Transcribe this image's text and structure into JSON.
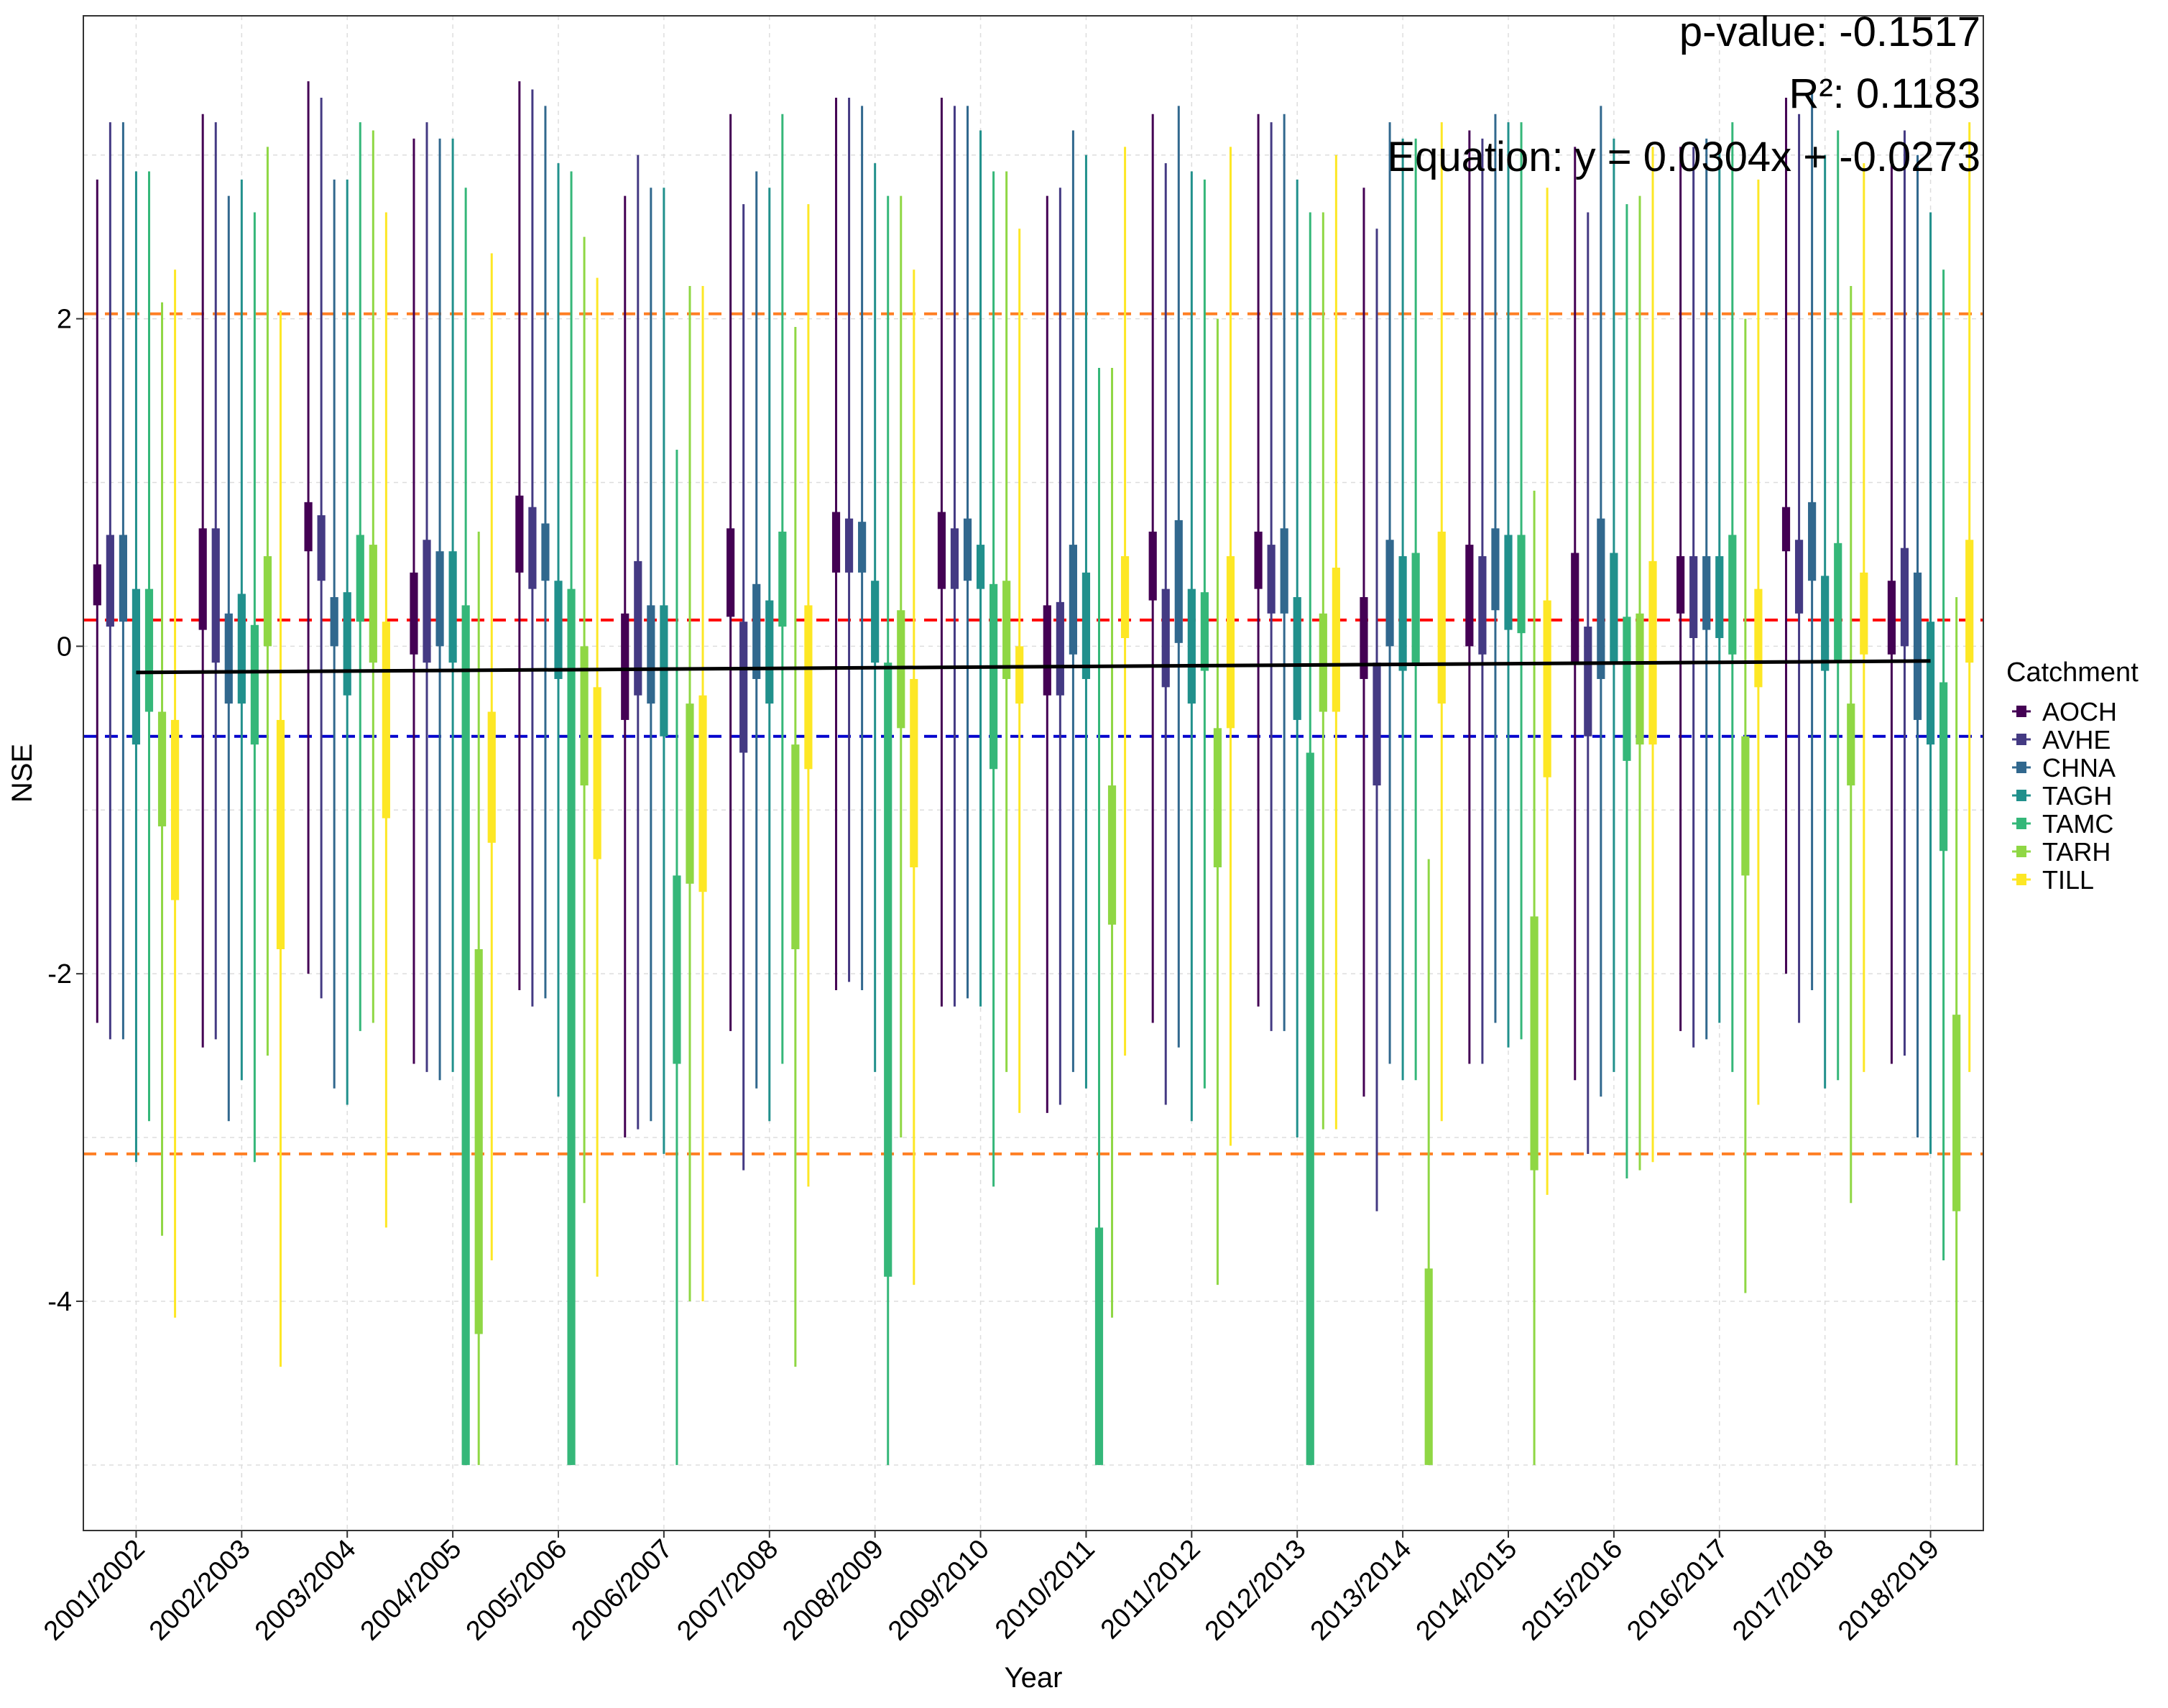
{
  "chart_data": {
    "type": "boxplot",
    "xlabel": "Year",
    "ylabel": "NSE",
    "ylim": [
      -5.4,
      3.85
    ],
    "yticks": [
      -4,
      -2,
      0,
      2
    ],
    "ytick_labels": [
      "-4",
      "-2",
      "0",
      "2"
    ],
    "categories": [
      "2001/2002",
      "2002/2003",
      "2003/2004",
      "2004/2005",
      "2005/2006",
      "2006/2007",
      "2007/2008",
      "2008/2009",
      "2009/2010",
      "2010/2011",
      "2011/2012",
      "2012/2013",
      "2013/2014",
      "2014/2015",
      "2015/2016",
      "2016/2017",
      "2017/2018",
      "2018/2019"
    ],
    "legend": {
      "title": "Catchment",
      "entries": [
        "AOCH",
        "AVHE",
        "CHNA",
        "TAGH",
        "TAMC",
        "TARH",
        "TILL"
      ],
      "placement": "right"
    },
    "series_colors": {
      "AOCH": "#440154",
      "AVHE": "#443A83",
      "CHNA": "#31688E",
      "TAGH": "#21908C",
      "TAMC": "#35B779",
      "TARH": "#8FD744",
      "TILL": "#FDE725"
    },
    "boxes": {
      "AOCH": [
        [
          0.25,
          0.5,
          -2.3,
          2.85
        ],
        [
          0.1,
          0.72,
          -2.45,
          3.25
        ],
        [
          0.58,
          0.88,
          -2.0,
          3.45
        ],
        [
          -0.05,
          0.45,
          -2.55,
          3.1
        ],
        [
          0.45,
          0.92,
          -2.1,
          3.45
        ],
        [
          -0.45,
          0.2,
          -3.0,
          2.75
        ],
        [
          0.18,
          0.72,
          -2.35,
          3.25
        ],
        [
          0.45,
          0.82,
          -2.1,
          3.35
        ],
        [
          0.35,
          0.82,
          -2.2,
          3.35
        ],
        [
          -0.3,
          0.25,
          -2.85,
          2.75
        ],
        [
          0.28,
          0.7,
          -2.3,
          3.25
        ],
        [
          0.35,
          0.7,
          -2.2,
          3.25
        ],
        [
          -0.2,
          0.3,
          -2.75,
          2.8
        ],
        [
          0.0,
          0.62,
          -2.55,
          3.15
        ],
        [
          -0.1,
          0.57,
          -2.65,
          3.05
        ],
        [
          0.2,
          0.55,
          -2.35,
          3.05
        ],
        [
          0.58,
          0.85,
          -2.0,
          3.35
        ],
        [
          -0.05,
          0.4,
          -2.55,
          2.95
        ]
      ],
      "AVHE": [
        [
          0.12,
          0.68,
          -2.4,
          3.2
        ],
        [
          -0.1,
          0.72,
          -2.4,
          3.2
        ],
        [
          0.4,
          0.8,
          -2.15,
          3.35
        ],
        [
          -0.1,
          0.65,
          -2.6,
          3.2
        ],
        [
          0.35,
          0.85,
          -2.2,
          3.4
        ],
        [
          -0.3,
          0.52,
          -2.95,
          3.0
        ],
        [
          -0.65,
          0.15,
          -3.2,
          2.7
        ],
        [
          0.45,
          0.78,
          -2.05,
          3.35
        ],
        [
          0.35,
          0.72,
          -2.2,
          3.3
        ],
        [
          -0.3,
          0.27,
          -2.8,
          2.8
        ],
        [
          -0.25,
          0.35,
          -2.8,
          2.95
        ],
        [
          0.2,
          0.62,
          -2.35,
          3.2
        ],
        [
          -0.85,
          -0.1,
          -3.45,
          2.55
        ],
        [
          -0.05,
          0.55,
          -2.55,
          3.1
        ],
        [
          -0.55,
          0.12,
          -3.1,
          2.65
        ],
        [
          0.05,
          0.55,
          -2.45,
          3.05
        ],
        [
          0.2,
          0.65,
          -2.3,
          3.25
        ],
        [
          0.0,
          0.6,
          -2.5,
          3.15
        ]
      ],
      "CHNA": [
        [
          0.15,
          0.68,
          -2.4,
          3.2
        ],
        [
          -0.35,
          0.2,
          -2.9,
          2.75
        ],
        [
          0.0,
          0.3,
          -2.7,
          2.85
        ],
        [
          0.0,
          0.58,
          -2.65,
          3.1
        ],
        [
          0.4,
          0.75,
          -2.15,
          3.3
        ],
        [
          -0.35,
          0.25,
          -2.9,
          2.8
        ],
        [
          -0.2,
          0.38,
          -2.7,
          2.9
        ],
        [
          0.45,
          0.76,
          -2.1,
          3.3
        ],
        [
          0.4,
          0.78,
          -2.15,
          3.3
        ],
        [
          -0.05,
          0.62,
          -2.6,
          3.15
        ],
        [
          0.02,
          0.77,
          -2.45,
          3.3
        ],
        [
          0.2,
          0.72,
          -2.35,
          3.25
        ],
        [
          0.0,
          0.65,
          -2.55,
          3.2
        ],
        [
          0.22,
          0.72,
          -2.3,
          3.25
        ],
        [
          -0.2,
          0.78,
          -2.75,
          3.3
        ],
        [
          0.1,
          0.55,
          -2.4,
          3.1
        ],
        [
          0.4,
          0.88,
          -2.1,
          3.4
        ],
        [
          -0.45,
          0.45,
          -3.0,
          3.0
        ]
      ],
      "TAGH": [
        [
          -0.6,
          0.35,
          -3.15,
          2.9
        ],
        [
          -0.35,
          0.32,
          -2.65,
          2.85
        ],
        [
          -0.3,
          0.33,
          -2.8,
          2.85
        ],
        [
          -0.1,
          0.58,
          -2.6,
          3.1
        ],
        [
          -0.2,
          0.4,
          -2.75,
          2.95
        ],
        [
          -0.55,
          0.25,
          -3.1,
          2.8
        ],
        [
          -0.35,
          0.28,
          -2.9,
          2.8
        ],
        [
          -0.1,
          0.4,
          -2.6,
          2.95
        ],
        [
          0.35,
          0.62,
          -2.2,
          3.15
        ],
        [
          -0.2,
          0.45,
          -2.7,
          3.0
        ],
        [
          -0.35,
          0.35,
          -2.9,
          2.9
        ],
        [
          -0.45,
          0.3,
          -3.0,
          2.85
        ],
        [
          -0.15,
          0.55,
          -2.65,
          3.1
        ],
        [
          0.1,
          0.68,
          -2.45,
          3.2
        ],
        [
          -0.1,
          0.57,
          -2.6,
          3.1
        ],
        [
          0.05,
          0.55,
          -2.3,
          3.05
        ],
        [
          -0.15,
          0.43,
          -2.7,
          3.0
        ],
        [
          -0.6,
          0.15,
          -3.1,
          2.65
        ]
      ],
      "TAMC": [
        [
          -0.4,
          0.35,
          -2.9,
          2.9
        ],
        [
          -0.6,
          0.13,
          -3.15,
          2.65
        ],
        [
          0.15,
          0.68,
          -2.35,
          3.2
        ],
        [
          -5.0,
          0.25,
          -5.0,
          2.8
        ],
        [
          -5.0,
          0.35,
          -5.0,
          2.9
        ],
        [
          -2.55,
          -1.4,
          -5.0,
          1.2
        ],
        [
          0.12,
          0.7,
          -2.55,
          3.25
        ],
        [
          -3.85,
          -0.1,
          -5.0,
          2.75
        ],
        [
          -0.75,
          0.38,
          -3.3,
          2.9
        ],
        [
          -5.0,
          -3.55,
          -5.0,
          1.7
        ],
        [
          -0.15,
          0.33,
          -2.7,
          2.85
        ],
        [
          -5.0,
          -0.65,
          -5.0,
          2.65
        ],
        [
          -0.1,
          0.57,
          -2.65,
          3.1
        ],
        [
          0.08,
          0.68,
          -2.4,
          3.2
        ],
        [
          -0.7,
          0.18,
          -3.25,
          2.7
        ],
        [
          -0.05,
          0.68,
          -2.6,
          3.2
        ],
        [
          -0.1,
          0.63,
          -2.65,
          3.15
        ],
        [
          -1.25,
          -0.22,
          -3.75,
          2.3
        ]
      ],
      "TARH": [
        [
          -1.1,
          -0.4,
          -3.6,
          2.1
        ],
        [
          0.0,
          0.55,
          -2.5,
          3.05
        ],
        [
          -0.1,
          0.62,
          -2.3,
          3.15
        ],
        [
          -4.2,
          -1.85,
          -5.0,
          0.7
        ],
        [
          -0.85,
          0.0,
          -3.4,
          2.5
        ],
        [
          -1.45,
          -0.35,
          -4.0,
          2.2
        ],
        [
          -1.85,
          -0.6,
          -4.4,
          1.95
        ],
        [
          -0.5,
          0.22,
          -3.0,
          2.75
        ],
        [
          -0.2,
          0.4,
          -2.6,
          2.9
        ],
        [
          -1.7,
          -0.85,
          -4.1,
          1.7
        ],
        [
          -1.35,
          -0.5,
          -3.9,
          2.0
        ],
        [
          -0.4,
          0.2,
          -2.95,
          2.65
        ],
        [
          -5.0,
          -3.8,
          -5.0,
          -1.3
        ],
        [
          -3.2,
          -1.65,
          -5.0,
          0.95
        ],
        [
          -0.6,
          0.2,
          -3.2,
          2.75
        ],
        [
          -1.4,
          -0.55,
          -3.95,
          2.0
        ],
        [
          -0.85,
          -0.35,
          -3.4,
          2.2
        ],
        [
          -3.45,
          -2.25,
          -5.0,
          0.3
        ]
      ],
      "TILL": [
        [
          -1.55,
          -0.45,
          -4.1,
          2.3
        ],
        [
          -1.85,
          -0.45,
          -4.4,
          2.05
        ],
        [
          -1.05,
          0.15,
          -3.55,
          2.65
        ],
        [
          -1.2,
          -0.4,
          -3.75,
          2.4
        ],
        [
          -1.3,
          -0.25,
          -3.85,
          2.25
        ],
        [
          -1.5,
          -0.3,
          -4.0,
          2.2
        ],
        [
          -0.75,
          0.25,
          -3.3,
          2.7
        ],
        [
          -1.35,
          -0.2,
          -3.9,
          2.3
        ],
        [
          -0.35,
          0.0,
          -2.85,
          2.55
        ],
        [
          0.05,
          0.55,
          -2.5,
          3.05
        ],
        [
          -0.5,
          0.55,
          -3.05,
          3.05
        ],
        [
          -0.4,
          0.48,
          -2.95,
          3.0
        ],
        [
          -0.35,
          0.7,
          -2.9,
          3.2
        ],
        [
          -0.8,
          0.28,
          -3.35,
          2.8
        ],
        [
          -0.6,
          0.52,
          -3.15,
          3.05
        ],
        [
          -0.25,
          0.35,
          -2.8,
          2.85
        ],
        [
          -0.05,
          0.45,
          -2.6,
          2.95
        ],
        [
          -0.1,
          0.65,
          -2.6,
          3.2
        ]
      ]
    },
    "reference_lines": [
      {
        "y": 2.03,
        "color": "#FF7F24",
        "style": "dashed"
      },
      {
        "y": 0.16,
        "color": "#FF0000",
        "style": "dashed"
      },
      {
        "y": -0.55,
        "color": "#0000CD",
        "style": "dashed"
      },
      {
        "y": -3.1,
        "color": "#FF7F24",
        "style": "dashed"
      }
    ],
    "trend_line": {
      "start": -0.16,
      "end": -0.09,
      "color": "#000000"
    },
    "annotations": [
      "p-value: -0.1517",
      "R²: 0.1183",
      "Equation: y = 0.0304x + -0.0273"
    ]
  }
}
